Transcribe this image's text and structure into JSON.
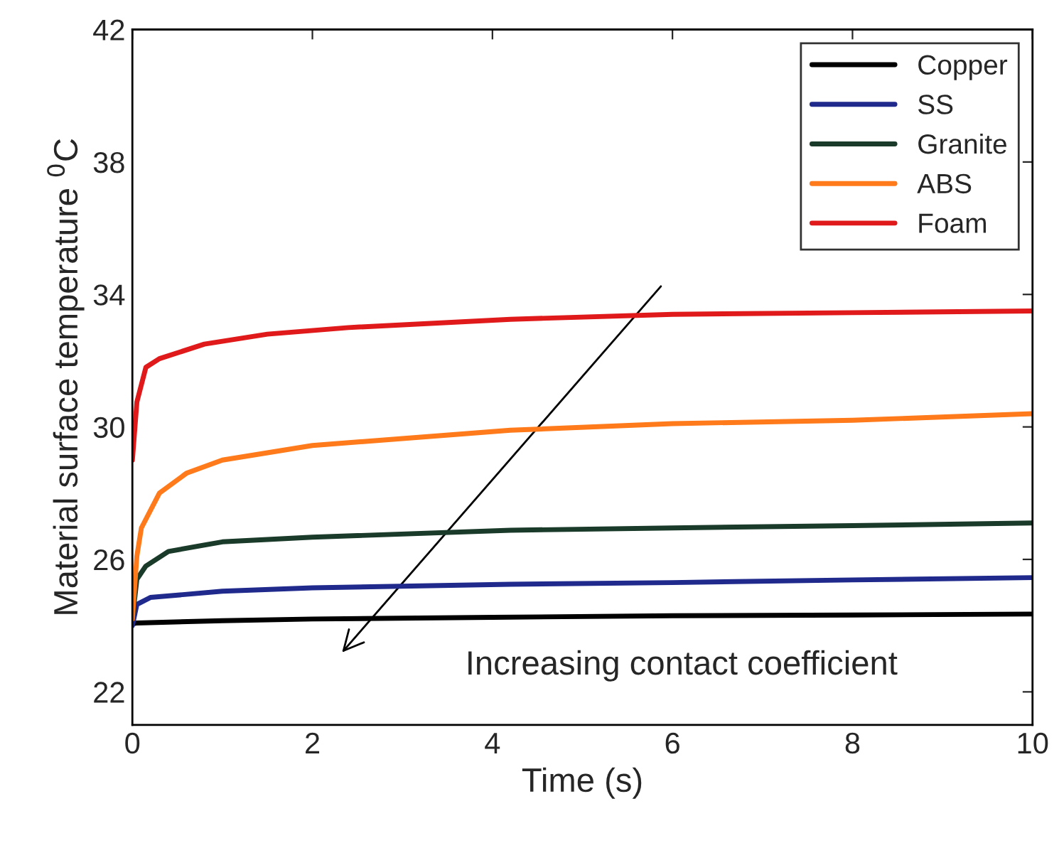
{
  "chart_data": {
    "type": "line",
    "xlabel": "Time (s)",
    "ylabel": "Material surface temperature $^{0}$C",
    "xlim": [
      0,
      10
    ],
    "xticks": [
      0,
      2,
      4,
      6,
      8,
      10
    ],
    "ylim": [
      21,
      42
    ],
    "yticks": [
      22,
      26,
      30,
      34,
      38,
      42
    ],
    "grid": false,
    "legend": "top right",
    "marker": "none",
    "line_style": "solid",
    "annotations": [
      "Increasing contact coefficient"
    ],
    "series": [
      {
        "name": "Copper",
        "color": "#000000",
        "x": [
          0,
          0.05,
          1,
          2,
          4,
          6,
          8,
          10
        ],
        "values": [
          24.05,
          24.08,
          24.15,
          24.2,
          24.25,
          24.3,
          24.32,
          24.35
        ]
      },
      {
        "name": "SS",
        "color": "#1f2a8c",
        "x": [
          0,
          0.05,
          0.2,
          1,
          2,
          4.2,
          6,
          8,
          10
        ],
        "values": [
          24.0,
          24.64,
          24.85,
          25.04,
          25.14,
          25.25,
          25.3,
          25.38,
          25.45
        ]
      },
      {
        "name": "Granite",
        "color": "#1a3a2a",
        "x": [
          0,
          0.05,
          0.15,
          0.4,
          1,
          2,
          4.2,
          6,
          8,
          10
        ],
        "values": [
          24.2,
          25.4,
          25.8,
          26.24,
          26.53,
          26.67,
          26.88,
          26.95,
          27.02,
          27.1
        ]
      },
      {
        "name": "ABS",
        "color": "#ff7a1a",
        "x": [
          0,
          0.05,
          0.1,
          0.3,
          0.6,
          1,
          2,
          3,
          4.2,
          6,
          8,
          10
        ],
        "values": [
          24.2,
          26.1,
          26.95,
          28.0,
          28.6,
          29.0,
          29.44,
          29.65,
          29.9,
          30.1,
          30.2,
          30.4
        ]
      },
      {
        "name": "Foam",
        "color": "#e01a1a",
        "x": [
          0,
          0.05,
          0.15,
          0.3,
          0.8,
          1.5,
          2.4,
          4.2,
          6,
          8,
          10
        ],
        "values": [
          29.0,
          30.75,
          31.8,
          32.06,
          32.5,
          32.8,
          33.0,
          33.25,
          33.4,
          33.45,
          33.5
        ]
      }
    ]
  }
}
